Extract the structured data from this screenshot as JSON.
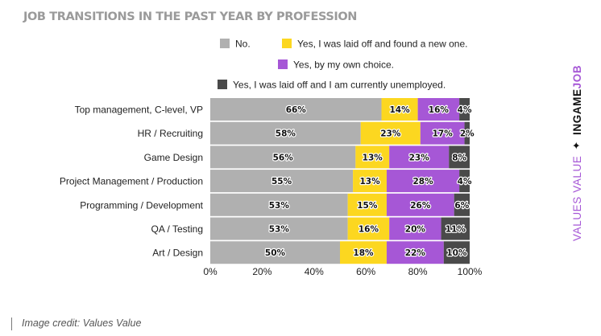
{
  "chart_data": {
    "type": "bar",
    "orientation": "horizontal",
    "stacked": true,
    "title": "JOB TRANSITIONS IN THE PAST YEAR BY PROFESSION",
    "categories": [
      "Top management, C-level, VP",
      "HR / Recruiting",
      "Game Design",
      "Project Management / Production",
      "Programming / Development",
      "QA / Testing",
      "Art / Design"
    ],
    "series": [
      {
        "name": "No.",
        "color": "#b0b0b0",
        "values": [
          66,
          58,
          56,
          55,
          53,
          53,
          50
        ]
      },
      {
        "name": "Yes, I was laid off and found a new one.",
        "color": "#fcd720",
        "values": [
          14,
          23,
          13,
          13,
          15,
          16,
          18
        ]
      },
      {
        "name": "Yes, by my own choice.",
        "color": "#a657d6",
        "values": [
          16,
          17,
          23,
          28,
          26,
          20,
          22
        ]
      },
      {
        "name": "Yes, I was laid off and I am currently unemployed.",
        "color": "#4a4a4a",
        "values": [
          4,
          2,
          8,
          4,
          6,
          11,
          10
        ]
      }
    ],
    "xlim": [
      0,
      100
    ],
    "x_ticks": [
      "0%",
      "20%",
      "40%",
      "60%",
      "80%",
      "100%"
    ],
    "value_suffix": "%",
    "grid": false,
    "legend_position": "top-right"
  },
  "branding": {
    "values_text": "VALUES VALUE",
    "star": "✦",
    "in_text": "IN",
    "game_text": "GAME",
    "job_text": "JOB"
  },
  "credit": "Image credit: Values Value"
}
